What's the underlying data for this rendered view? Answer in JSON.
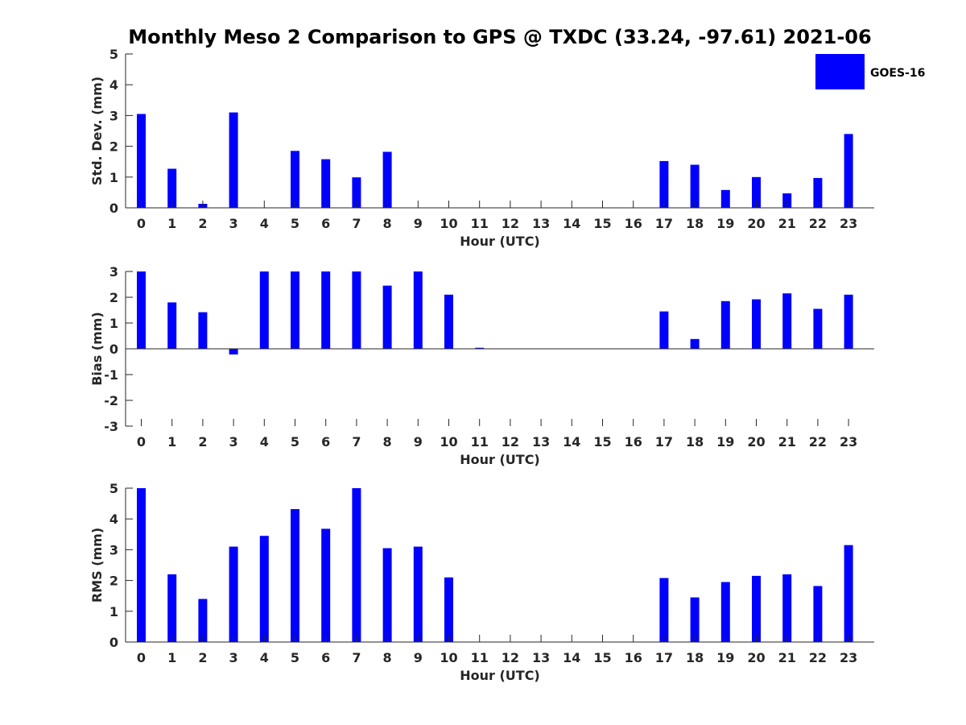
{
  "chart_data": {
    "title": "Monthly Meso 2 Comparison to GPS @ TXDC (33.24, -97.61) 2021-06",
    "legend": [
      "GOES-16"
    ],
    "legend_placement": "top-right",
    "bar_color": "#0000ff",
    "type": "bar",
    "categories": [
      "0",
      "1",
      "2",
      "3",
      "4",
      "5",
      "6",
      "7",
      "8",
      "9",
      "10",
      "11",
      "12",
      "13",
      "14",
      "15",
      "16",
      "17",
      "18",
      "19",
      "20",
      "21",
      "22",
      "23"
    ],
    "xlabel": "Hour (UTC)",
    "panels": [
      {
        "type": "bar",
        "ylabel": "Std. Dev. (mm)",
        "ylim": [
          0,
          5
        ],
        "yticks": [
          0,
          1,
          2,
          3,
          4,
          5
        ],
        "series": [
          {
            "name": "GOES-16",
            "values": [
              3.05,
              1.27,
              0.13,
              3.1,
              null,
              1.85,
              1.58,
              0.99,
              1.82,
              null,
              null,
              null,
              null,
              null,
              null,
              null,
              null,
              1.52,
              1.4,
              0.58,
              1.0,
              0.47,
              0.97,
              2.4
            ]
          }
        ]
      },
      {
        "type": "bar",
        "ylabel": "Bias (mm)",
        "ylim": [
          -3,
          3
        ],
        "yticks": [
          -3,
          -2,
          -1,
          0,
          1,
          2,
          3
        ],
        "series": [
          {
            "name": "GOES-16",
            "values": [
              3.0,
              1.8,
              1.42,
              -0.22,
              3.0,
              3.0,
              3.0,
              3.0,
              2.45,
              3.0,
              2.1,
              0.04,
              null,
              null,
              null,
              null,
              null,
              1.45,
              0.38,
              1.85,
              1.92,
              2.15,
              1.55,
              2.1
            ]
          }
        ]
      },
      {
        "type": "bar",
        "ylabel": "RMS (mm)",
        "ylim": [
          0,
          5
        ],
        "yticks": [
          0,
          1,
          2,
          3,
          4,
          5
        ],
        "series": [
          {
            "name": "GOES-16",
            "values": [
              5.0,
              2.2,
              1.4,
              3.1,
              3.45,
              4.32,
              3.68,
              5.0,
              3.05,
              3.1,
              2.1,
              null,
              null,
              null,
              null,
              null,
              null,
              2.08,
              1.45,
              1.95,
              2.15,
              2.2,
              1.82,
              3.15
            ]
          }
        ]
      }
    ]
  }
}
